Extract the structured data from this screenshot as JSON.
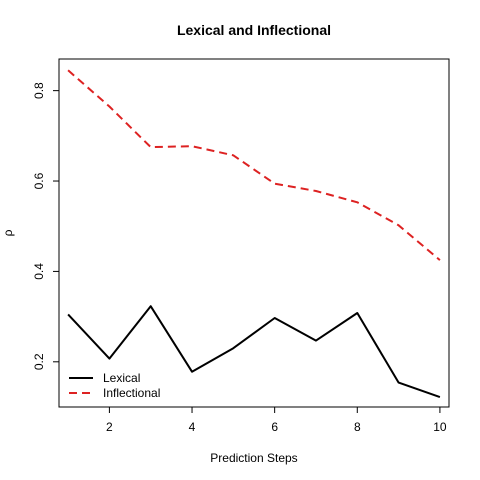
{
  "chart_data": {
    "type": "line",
    "title": "Lexical and Inflectional",
    "xlabel": "Prediction Steps",
    "ylabel": "ρ",
    "x": [
      1,
      2,
      3,
      4,
      5,
      6,
      7,
      8,
      9,
      10
    ],
    "xlim": [
      0.78,
      10.22
    ],
    "ylim": [
      0.1,
      0.87
    ],
    "xticks": [
      2,
      4,
      6,
      8,
      10
    ],
    "yticks": [
      0.2,
      0.4,
      0.6,
      0.8
    ],
    "grid": false,
    "legend_position": "bottom-left",
    "series": [
      {
        "name": "Lexical",
        "color": "#000000",
        "dash": "solid",
        "values": [
          0.305,
          0.207,
          0.323,
          0.178,
          0.23,
          0.297,
          0.247,
          0.308,
          0.154,
          0.122
        ]
      },
      {
        "name": "Inflectional",
        "color": "#dd2222",
        "dash": "dashed",
        "values": [
          0.845,
          0.765,
          0.675,
          0.677,
          0.657,
          0.594,
          0.578,
          0.553,
          0.502,
          0.425
        ]
      }
    ]
  }
}
